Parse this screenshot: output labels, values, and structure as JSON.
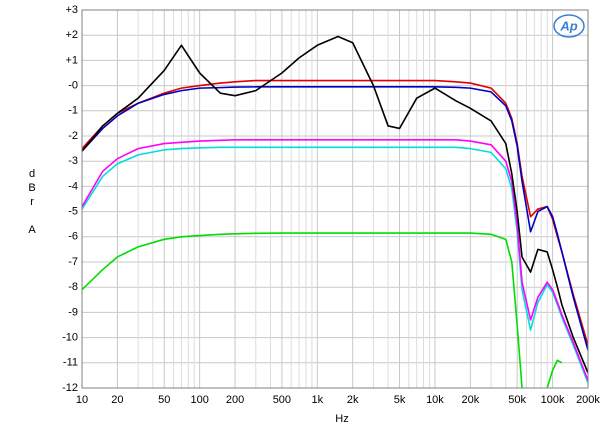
{
  "chart_data": {
    "type": "line",
    "logo": "Ap",
    "x_label": "Hz",
    "y_label": "dBr",
    "y_label2": "A",
    "x_log": true,
    "grid": true,
    "xlim": [
      10,
      200000
    ],
    "ylim": [
      -12,
      3
    ],
    "xticks": [
      10,
      20,
      50,
      100,
      200,
      500,
      {
        "value": 1000,
        "label": "1k"
      },
      {
        "value": 2000,
        "label": "2k"
      },
      {
        "value": 5000,
        "label": "5k"
      },
      {
        "value": 10000,
        "label": "10k"
      },
      {
        "value": 20000,
        "label": "20k"
      },
      {
        "value": 50000,
        "label": "50k"
      },
      {
        "value": 100000,
        "label": "100k"
      },
      {
        "value": 200000,
        "label": "200k"
      }
    ],
    "x_minor_ticks": [
      30,
      40,
      60,
      70,
      80,
      90,
      300,
      400,
      600,
      700,
      800,
      900,
      3000,
      4000,
      6000,
      7000,
      8000,
      9000,
      30000,
      40000,
      60000,
      70000,
      80000,
      90000
    ],
    "yticks": [
      {
        "value": 3,
        "label": "+3"
      },
      {
        "value": 2,
        "label": "+2"
      },
      {
        "value": 1,
        "label": "+1"
      },
      {
        "value": 0,
        "label": "-0"
      },
      -1,
      -2,
      -3,
      -4,
      -5,
      -6,
      -7,
      -8,
      -9,
      -10,
      -11,
      -12
    ],
    "x": [
      10,
      15,
      20,
      30,
      50,
      70,
      100,
      150,
      200,
      300,
      500,
      700,
      1000,
      1500,
      2000,
      3000,
      4000,
      5000,
      7000,
      10000,
      15000,
      20000,
      30000,
      40000,
      45000,
      50000,
      55000,
      65000,
      75000,
      90000,
      100000,
      110000,
      120000,
      150000,
      200000
    ],
    "series": [
      {
        "color": "#00dd00",
        "values": [
          -8.1,
          -7.3,
          -6.8,
          -6.4,
          -6.1,
          -6.0,
          -5.95,
          -5.9,
          -5.88,
          -5.86,
          -5.85,
          -5.85,
          -5.85,
          -5.85,
          -5.85,
          -5.85,
          -5.85,
          -5.85,
          -5.85,
          -5.85,
          -5.85,
          -5.85,
          -5.9,
          -6.1,
          -7.0,
          -9.5,
          -12,
          null,
          null,
          -12,
          -11.3,
          -10.9,
          -11.0,
          null,
          null
        ]
      },
      {
        "color": "#00dddd",
        "values": [
          -4.9,
          -3.6,
          -3.1,
          -2.75,
          -2.55,
          -2.5,
          -2.47,
          -2.45,
          -2.45,
          -2.45,
          -2.45,
          -2.45,
          -2.45,
          -2.45,
          -2.45,
          -2.45,
          -2.45,
          -2.45,
          -2.45,
          -2.45,
          -2.45,
          -2.5,
          -2.65,
          -3.3,
          -4.1,
          -5.8,
          -8.1,
          -9.7,
          -8.6,
          -7.9,
          -8.2,
          -8.7,
          -9.2,
          -10.3,
          -11.8
        ]
      },
      {
        "color": "#ff00ff",
        "values": [
          -4.8,
          -3.4,
          -2.9,
          -2.5,
          -2.3,
          -2.25,
          -2.2,
          -2.17,
          -2.15,
          -2.15,
          -2.15,
          -2.15,
          -2.15,
          -2.15,
          -2.15,
          -2.15,
          -2.15,
          -2.15,
          -2.15,
          -2.15,
          -2.15,
          -2.2,
          -2.35,
          -3.0,
          -3.8,
          -5.5,
          -7.8,
          -9.3,
          -8.4,
          -7.8,
          -8.1,
          -8.6,
          -9.1,
          -10.2,
          -11.7
        ]
      },
      {
        "color": "#e00000",
        "values": [
          -2.5,
          -1.6,
          -1.1,
          -0.7,
          -0.3,
          -0.1,
          0.0,
          0.1,
          0.15,
          0.2,
          0.2,
          0.2,
          0.2,
          0.2,
          0.2,
          0.2,
          0.2,
          0.2,
          0.2,
          0.2,
          0.15,
          0.1,
          -0.1,
          -0.7,
          -1.3,
          -2.3,
          -3.6,
          -5.2,
          -4.9,
          -4.8,
          -5.3,
          -6.0,
          -6.6,
          -8.3,
          -10.3
        ]
      },
      {
        "color": "#0000c0",
        "values": [
          -2.6,
          -1.7,
          -1.2,
          -0.7,
          -0.35,
          -0.2,
          -0.1,
          -0.08,
          -0.06,
          -0.05,
          -0.05,
          -0.05,
          -0.05,
          -0.05,
          -0.05,
          -0.05,
          -0.05,
          -0.05,
          -0.05,
          -0.05,
          -0.07,
          -0.1,
          -0.25,
          -0.8,
          -1.4,
          -2.4,
          -3.8,
          -5.8,
          -5.0,
          -4.8,
          -5.2,
          -5.9,
          -6.6,
          -8.4,
          -10.5
        ]
      },
      {
        "color": "#000000",
        "values": [
          -2.6,
          -1.6,
          -1.1,
          -0.5,
          0.6,
          1.6,
          0.5,
          -0.3,
          -0.4,
          -0.2,
          0.5,
          1.1,
          1.6,
          1.95,
          1.7,
          0.0,
          -1.6,
          -1.7,
          -0.5,
          -0.1,
          -0.6,
          -0.9,
          -1.4,
          -2.3,
          -3.5,
          -5,
          -6.8,
          -7.4,
          -6.5,
          -6.6,
          -7.3,
          -8,
          -8.7,
          -10,
          -11.4
        ]
      }
    ]
  }
}
